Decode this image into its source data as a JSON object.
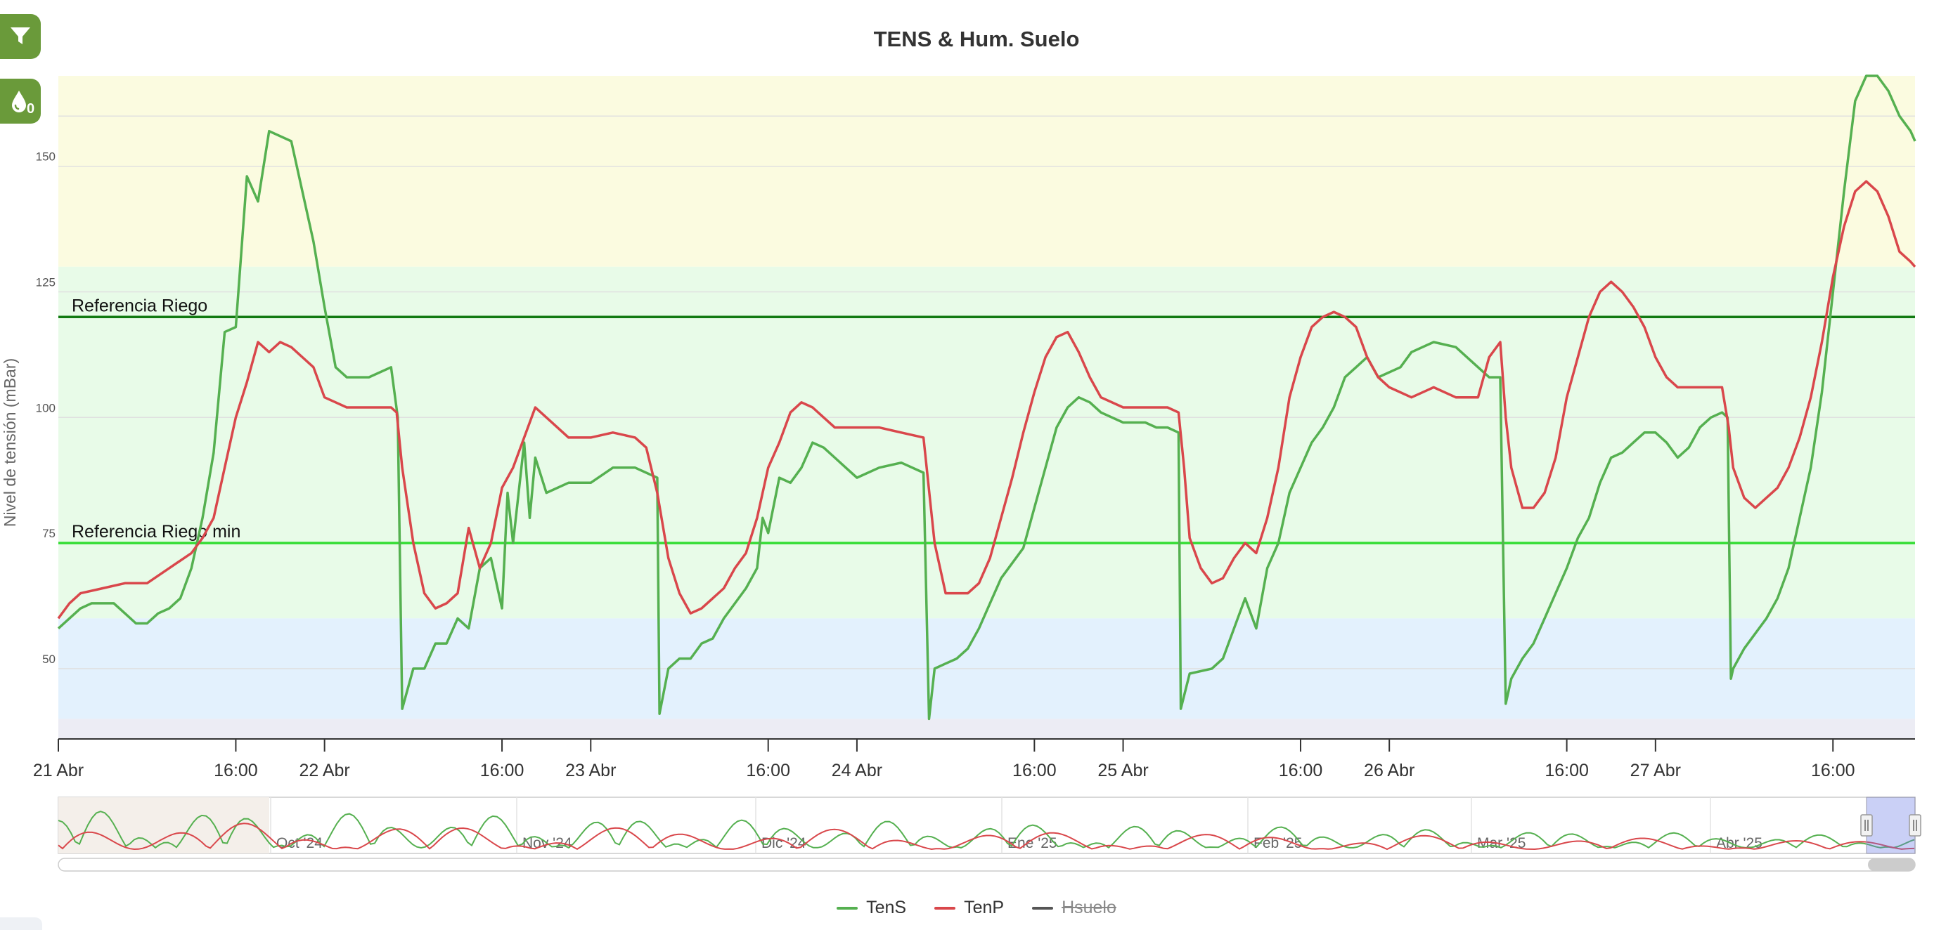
{
  "toolbar": {
    "filter_icon": "filter-icon",
    "water_icon": "water-drop-icon",
    "water_badge": "0"
  },
  "chart_data": {
    "type": "line",
    "title": "TENS & Hum. Suelo",
    "ylabel": "Nivel de tensión (mBar)",
    "ylim": [
      36,
      168
    ],
    "y_ticks": [
      "50",
      "75",
      "100",
      "125",
      "150"
    ],
    "x_range_hours": [
      0,
      167.4
    ],
    "x_ticks": [
      {
        "label": "21 Abr",
        "h": 0
      },
      {
        "label": "16:00",
        "h": 16
      },
      {
        "label": "22 Abr",
        "h": 24
      },
      {
        "label": "16:00",
        "h": 40
      },
      {
        "label": "23 Abr",
        "h": 48
      },
      {
        "label": "16:00",
        "h": 64
      },
      {
        "label": "24 Abr",
        "h": 72
      },
      {
        "label": "16:00",
        "h": 88
      },
      {
        "label": "25 Abr",
        "h": 96
      },
      {
        "label": "16:00",
        "h": 112
      },
      {
        "label": "26 Abr",
        "h": 120
      },
      {
        "label": "16:00",
        "h": 136
      },
      {
        "label": "27 Abr",
        "h": 144
      },
      {
        "label": "16:00",
        "h": 160
      }
    ],
    "bands": [
      {
        "from": 130,
        "to": 168,
        "color": "#fbfbe0"
      },
      {
        "from": 60,
        "to": 130,
        "color": "#e8fbe8"
      },
      {
        "from": 40,
        "to": 60,
        "color": "#e3f1fd"
      },
      {
        "from": 36,
        "to": 40,
        "color": "#ececf4"
      }
    ],
    "plot_lines": [
      {
        "label": "Referencia Riego",
        "value": 120,
        "color": "#117a11"
      },
      {
        "label": "Referencia Riego min",
        "value": 75,
        "color": "#33dd33"
      }
    ],
    "series": [
      {
        "name": "TenS",
        "color": "#55b050",
        "hidden": false,
        "points": [
          [
            0,
            58
          ],
          [
            2,
            62
          ],
          [
            3,
            63
          ],
          [
            5,
            63
          ],
          [
            6,
            61
          ],
          [
            7,
            59
          ],
          [
            8,
            59
          ],
          [
            9,
            61
          ],
          [
            10,
            62
          ],
          [
            11,
            64
          ],
          [
            12,
            70
          ],
          [
            13,
            80
          ],
          [
            14,
            93
          ],
          [
            15,
            117
          ],
          [
            16,
            118
          ],
          [
            17,
            148
          ],
          [
            18,
            143
          ],
          [
            19,
            157
          ],
          [
            21,
            155
          ],
          [
            22,
            145
          ],
          [
            23,
            135
          ],
          [
            24,
            122
          ],
          [
            25,
            110
          ],
          [
            26,
            108
          ],
          [
            28,
            108
          ],
          [
            30,
            110
          ],
          [
            30.6,
            100
          ],
          [
            31,
            42
          ],
          [
            32,
            50
          ],
          [
            33,
            50
          ],
          [
            34,
            55
          ],
          [
            35,
            55
          ],
          [
            36,
            60
          ],
          [
            37,
            58
          ],
          [
            38,
            70
          ],
          [
            39,
            72
          ],
          [
            40,
            62
          ],
          [
            40.5,
            85
          ],
          [
            41,
            75
          ],
          [
            42,
            95
          ],
          [
            42.5,
            80
          ],
          [
            43,
            92
          ],
          [
            44,
            85
          ],
          [
            46,
            87
          ],
          [
            48,
            87
          ],
          [
            50,
            90
          ],
          [
            52,
            90
          ],
          [
            54,
            88
          ],
          [
            54.2,
            41
          ],
          [
            55,
            50
          ],
          [
            56,
            52
          ],
          [
            57,
            52
          ],
          [
            58,
            55
          ],
          [
            59,
            56
          ],
          [
            60,
            60
          ],
          [
            61,
            63
          ],
          [
            62,
            66
          ],
          [
            63,
            70
          ],
          [
            63.5,
            80
          ],
          [
            64,
            77
          ],
          [
            65,
            88
          ],
          [
            66,
            87
          ],
          [
            67,
            90
          ],
          [
            68,
            95
          ],
          [
            69,
            94
          ],
          [
            70,
            92
          ],
          [
            71,
            90
          ],
          [
            72,
            88
          ],
          [
            74,
            90
          ],
          [
            76,
            91
          ],
          [
            78,
            89
          ],
          [
            78.5,
            40
          ],
          [
            79,
            50
          ],
          [
            80,
            51
          ],
          [
            81,
            52
          ],
          [
            82,
            54
          ],
          [
            83,
            58
          ],
          [
            84,
            63
          ],
          [
            85,
            68
          ],
          [
            86,
            71
          ],
          [
            87,
            74
          ],
          [
            88,
            82
          ],
          [
            89,
            90
          ],
          [
            90,
            98
          ],
          [
            91,
            102
          ],
          [
            92,
            104
          ],
          [
            93,
            103
          ],
          [
            94,
            101
          ],
          [
            96,
            99
          ],
          [
            98,
            99
          ],
          [
            99,
            98
          ],
          [
            100,
            98
          ],
          [
            101,
            97
          ],
          [
            101.2,
            42
          ],
          [
            102,
            49
          ],
          [
            104,
            50
          ],
          [
            105,
            52
          ],
          [
            106,
            58
          ],
          [
            107,
            64
          ],
          [
            108,
            58
          ],
          [
            109,
            70
          ],
          [
            110,
            75
          ],
          [
            111,
            85
          ],
          [
            112,
            90
          ],
          [
            113,
            95
          ],
          [
            114,
            98
          ],
          [
            115,
            102
          ],
          [
            116,
            108
          ],
          [
            117,
            110
          ],
          [
            118,
            112
          ],
          [
            119,
            108
          ],
          [
            121,
            110
          ],
          [
            122,
            113
          ],
          [
            124,
            115
          ],
          [
            126,
            114
          ],
          [
            128,
            110
          ],
          [
            129,
            108
          ],
          [
            130,
            108
          ],
          [
            130.5,
            43
          ],
          [
            131,
            48
          ],
          [
            132,
            52
          ],
          [
            133,
            55
          ],
          [
            134,
            60
          ],
          [
            135,
            65
          ],
          [
            136,
            70
          ],
          [
            137,
            76
          ],
          [
            138,
            80
          ],
          [
            139,
            87
          ],
          [
            140,
            92
          ],
          [
            141,
            93
          ],
          [
            142,
            95
          ],
          [
            143,
            97
          ],
          [
            144,
            97
          ],
          [
            145,
            95
          ],
          [
            146,
            92
          ],
          [
            147,
            94
          ],
          [
            148,
            98
          ],
          [
            149,
            100
          ],
          [
            150,
            101
          ],
          [
            150.5,
            100
          ],
          [
            150.8,
            48
          ],
          [
            151,
            50
          ],
          [
            152,
            54
          ],
          [
            153,
            57
          ],
          [
            154,
            60
          ],
          [
            155,
            64
          ],
          [
            156,
            70
          ],
          [
            157,
            80
          ],
          [
            158,
            90
          ],
          [
            159,
            105
          ],
          [
            160,
            125
          ],
          [
            161,
            145
          ],
          [
            162,
            163
          ],
          [
            163,
            168
          ],
          [
            164,
            168
          ],
          [
            165,
            165
          ],
          [
            166,
            160
          ],
          [
            167,
            157
          ],
          [
            167.4,
            155
          ]
        ]
      },
      {
        "name": "TenP",
        "color": "#d9474b",
        "hidden": false,
        "points": [
          [
            0,
            60
          ],
          [
            1,
            63
          ],
          [
            2,
            65
          ],
          [
            4,
            66
          ],
          [
            6,
            67
          ],
          [
            8,
            67
          ],
          [
            10,
            70
          ],
          [
            12,
            73
          ],
          [
            13,
            76
          ],
          [
            14,
            80
          ],
          [
            15,
            90
          ],
          [
            16,
            100
          ],
          [
            17,
            107
          ],
          [
            18,
            115
          ],
          [
            19,
            113
          ],
          [
            20,
            115
          ],
          [
            21,
            114
          ],
          [
            22,
            112
          ],
          [
            23,
            110
          ],
          [
            24,
            104
          ],
          [
            25,
            103
          ],
          [
            26,
            102
          ],
          [
            28,
            102
          ],
          [
            30,
            102
          ],
          [
            30.5,
            101
          ],
          [
            31,
            90
          ],
          [
            32,
            75
          ],
          [
            33,
            65
          ],
          [
            34,
            62
          ],
          [
            35,
            63
          ],
          [
            36,
            65
          ],
          [
            37,
            78
          ],
          [
            38,
            70
          ],
          [
            39,
            75
          ],
          [
            40,
            86
          ],
          [
            41,
            90
          ],
          [
            42,
            96
          ],
          [
            43,
            102
          ],
          [
            44,
            100
          ],
          [
            45,
            98
          ],
          [
            46,
            96
          ],
          [
            48,
            96
          ],
          [
            50,
            97
          ],
          [
            52,
            96
          ],
          [
            53,
            94
          ],
          [
            54,
            85
          ],
          [
            55,
            72
          ],
          [
            56,
            65
          ],
          [
            57,
            61
          ],
          [
            58,
            62
          ],
          [
            59,
            64
          ],
          [
            60,
            66
          ],
          [
            61,
            70
          ],
          [
            62,
            73
          ],
          [
            63,
            80
          ],
          [
            64,
            90
          ],
          [
            65,
            95
          ],
          [
            66,
            101
          ],
          [
            67,
            103
          ],
          [
            68,
            102
          ],
          [
            69,
            100
          ],
          [
            70,
            98
          ],
          [
            72,
            98
          ],
          [
            74,
            98
          ],
          [
            76,
            97
          ],
          [
            78,
            96
          ],
          [
            79,
            75
          ],
          [
            80,
            65
          ],
          [
            82,
            65
          ],
          [
            83,
            67
          ],
          [
            84,
            72
          ],
          [
            85,
            80
          ],
          [
            86,
            88
          ],
          [
            87,
            97
          ],
          [
            88,
            105
          ],
          [
            89,
            112
          ],
          [
            90,
            116
          ],
          [
            91,
            117
          ],
          [
            92,
            113
          ],
          [
            93,
            108
          ],
          [
            94,
            104
          ],
          [
            96,
            102
          ],
          [
            98,
            102
          ],
          [
            100,
            102
          ],
          [
            101,
            101
          ],
          [
            101.5,
            90
          ],
          [
            102,
            76
          ],
          [
            103,
            70
          ],
          [
            104,
            67
          ],
          [
            105,
            68
          ],
          [
            106,
            72
          ],
          [
            107,
            75
          ],
          [
            108,
            73
          ],
          [
            109,
            80
          ],
          [
            110,
            90
          ],
          [
            111,
            104
          ],
          [
            112,
            112
          ],
          [
            113,
            118
          ],
          [
            114,
            120
          ],
          [
            115,
            121
          ],
          [
            116,
            120
          ],
          [
            117,
            118
          ],
          [
            118,
            112
          ],
          [
            119,
            108
          ],
          [
            120,
            106
          ],
          [
            122,
            104
          ],
          [
            124,
            106
          ],
          [
            126,
            104
          ],
          [
            128,
            104
          ],
          [
            129,
            112
          ],
          [
            130,
            115
          ],
          [
            130.5,
            100
          ],
          [
            131,
            90
          ],
          [
            132,
            82
          ],
          [
            133,
            82
          ],
          [
            134,
            85
          ],
          [
            135,
            92
          ],
          [
            136,
            104
          ],
          [
            137,
            112
          ],
          [
            138,
            120
          ],
          [
            139,
            125
          ],
          [
            140,
            127
          ],
          [
            141,
            125
          ],
          [
            142,
            122
          ],
          [
            143,
            118
          ],
          [
            144,
            112
          ],
          [
            145,
            108
          ],
          [
            146,
            106
          ],
          [
            148,
            106
          ],
          [
            150,
            106
          ],
          [
            150.6,
            98
          ],
          [
            151,
            90
          ],
          [
            152,
            84
          ],
          [
            153,
            82
          ],
          [
            154,
            84
          ],
          [
            155,
            86
          ],
          [
            156,
            90
          ],
          [
            157,
            96
          ],
          [
            158,
            104
          ],
          [
            159,
            115
          ],
          [
            160,
            128
          ],
          [
            161,
            138
          ],
          [
            162,
            145
          ],
          [
            163,
            147
          ],
          [
            164,
            145
          ],
          [
            165,
            140
          ],
          [
            166,
            133
          ],
          [
            167,
            131
          ],
          [
            167.4,
            130
          ]
        ]
      },
      {
        "name": "Hsuelo",
        "color": "#555555",
        "hidden": true,
        "points": []
      }
    ],
    "navigator": {
      "x_ticks": [
        "Oct '24",
        "Nov '24",
        "Dic '24",
        "Ene '25",
        "Feb '25",
        "Mar '25",
        "Abr '25"
      ]
    }
  }
}
